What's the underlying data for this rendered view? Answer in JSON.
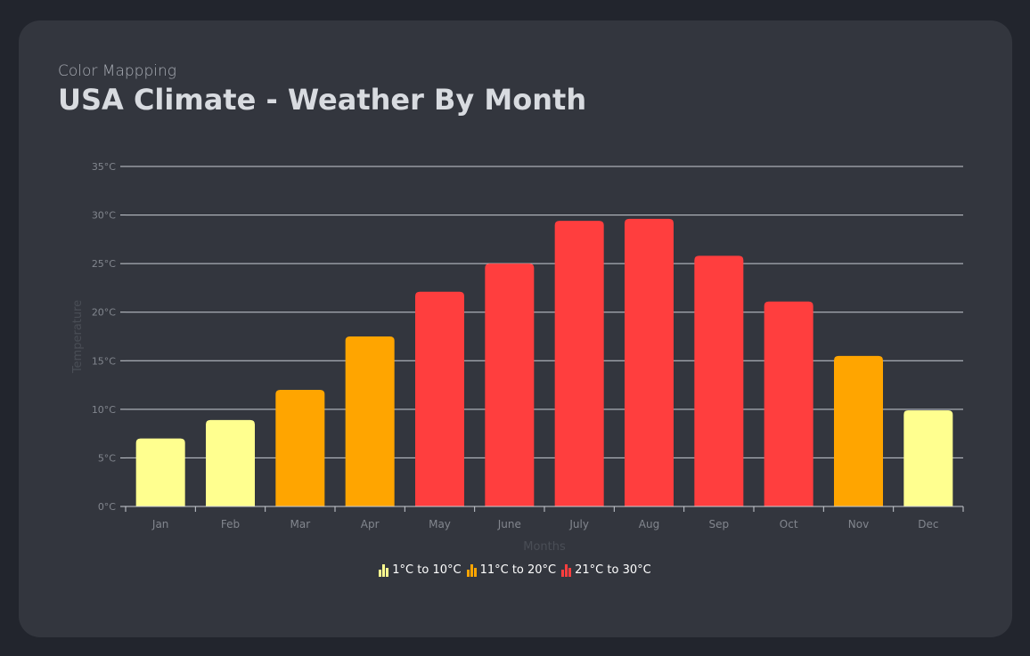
{
  "header": {
    "subtitle": "Color Mappping",
    "title": "USA Climate - Weather By Month"
  },
  "chart_data": {
    "type": "bar",
    "categories": [
      "Jan",
      "Feb",
      "Mar",
      "Apr",
      "May",
      "June",
      "July",
      "Aug",
      "Sep",
      "Oct",
      "Nov",
      "Dec"
    ],
    "values": [
      7,
      8.9,
      12,
      17.5,
      22.1,
      25,
      29.4,
      29.6,
      25.8,
      21.1,
      15.5,
      9.9
    ],
    "ylim": [
      0,
      35
    ],
    "yticks": [
      0,
      5,
      10,
      15,
      20,
      25,
      30,
      35
    ],
    "ytick_suffix": "°C",
    "xlabel": "Months",
    "ylabel": "Temperature",
    "grid": true,
    "legend_position": "bottom-center",
    "color_ranges": [
      {
        "label": "1°C to 10°C",
        "from": 1,
        "to": 10,
        "color": "#ffff8f"
      },
      {
        "label": "11°C to 20°C",
        "from": 11,
        "to": 20,
        "color": "#ffa500"
      },
      {
        "label": "21°C to 30°C",
        "from": 21,
        "to": 30,
        "color": "#ff3e3e"
      }
    ]
  },
  "colors": {
    "background": "#22252d",
    "card": "#33363e",
    "grid": "#c8ccd3",
    "axis": "#c8ccd3"
  }
}
